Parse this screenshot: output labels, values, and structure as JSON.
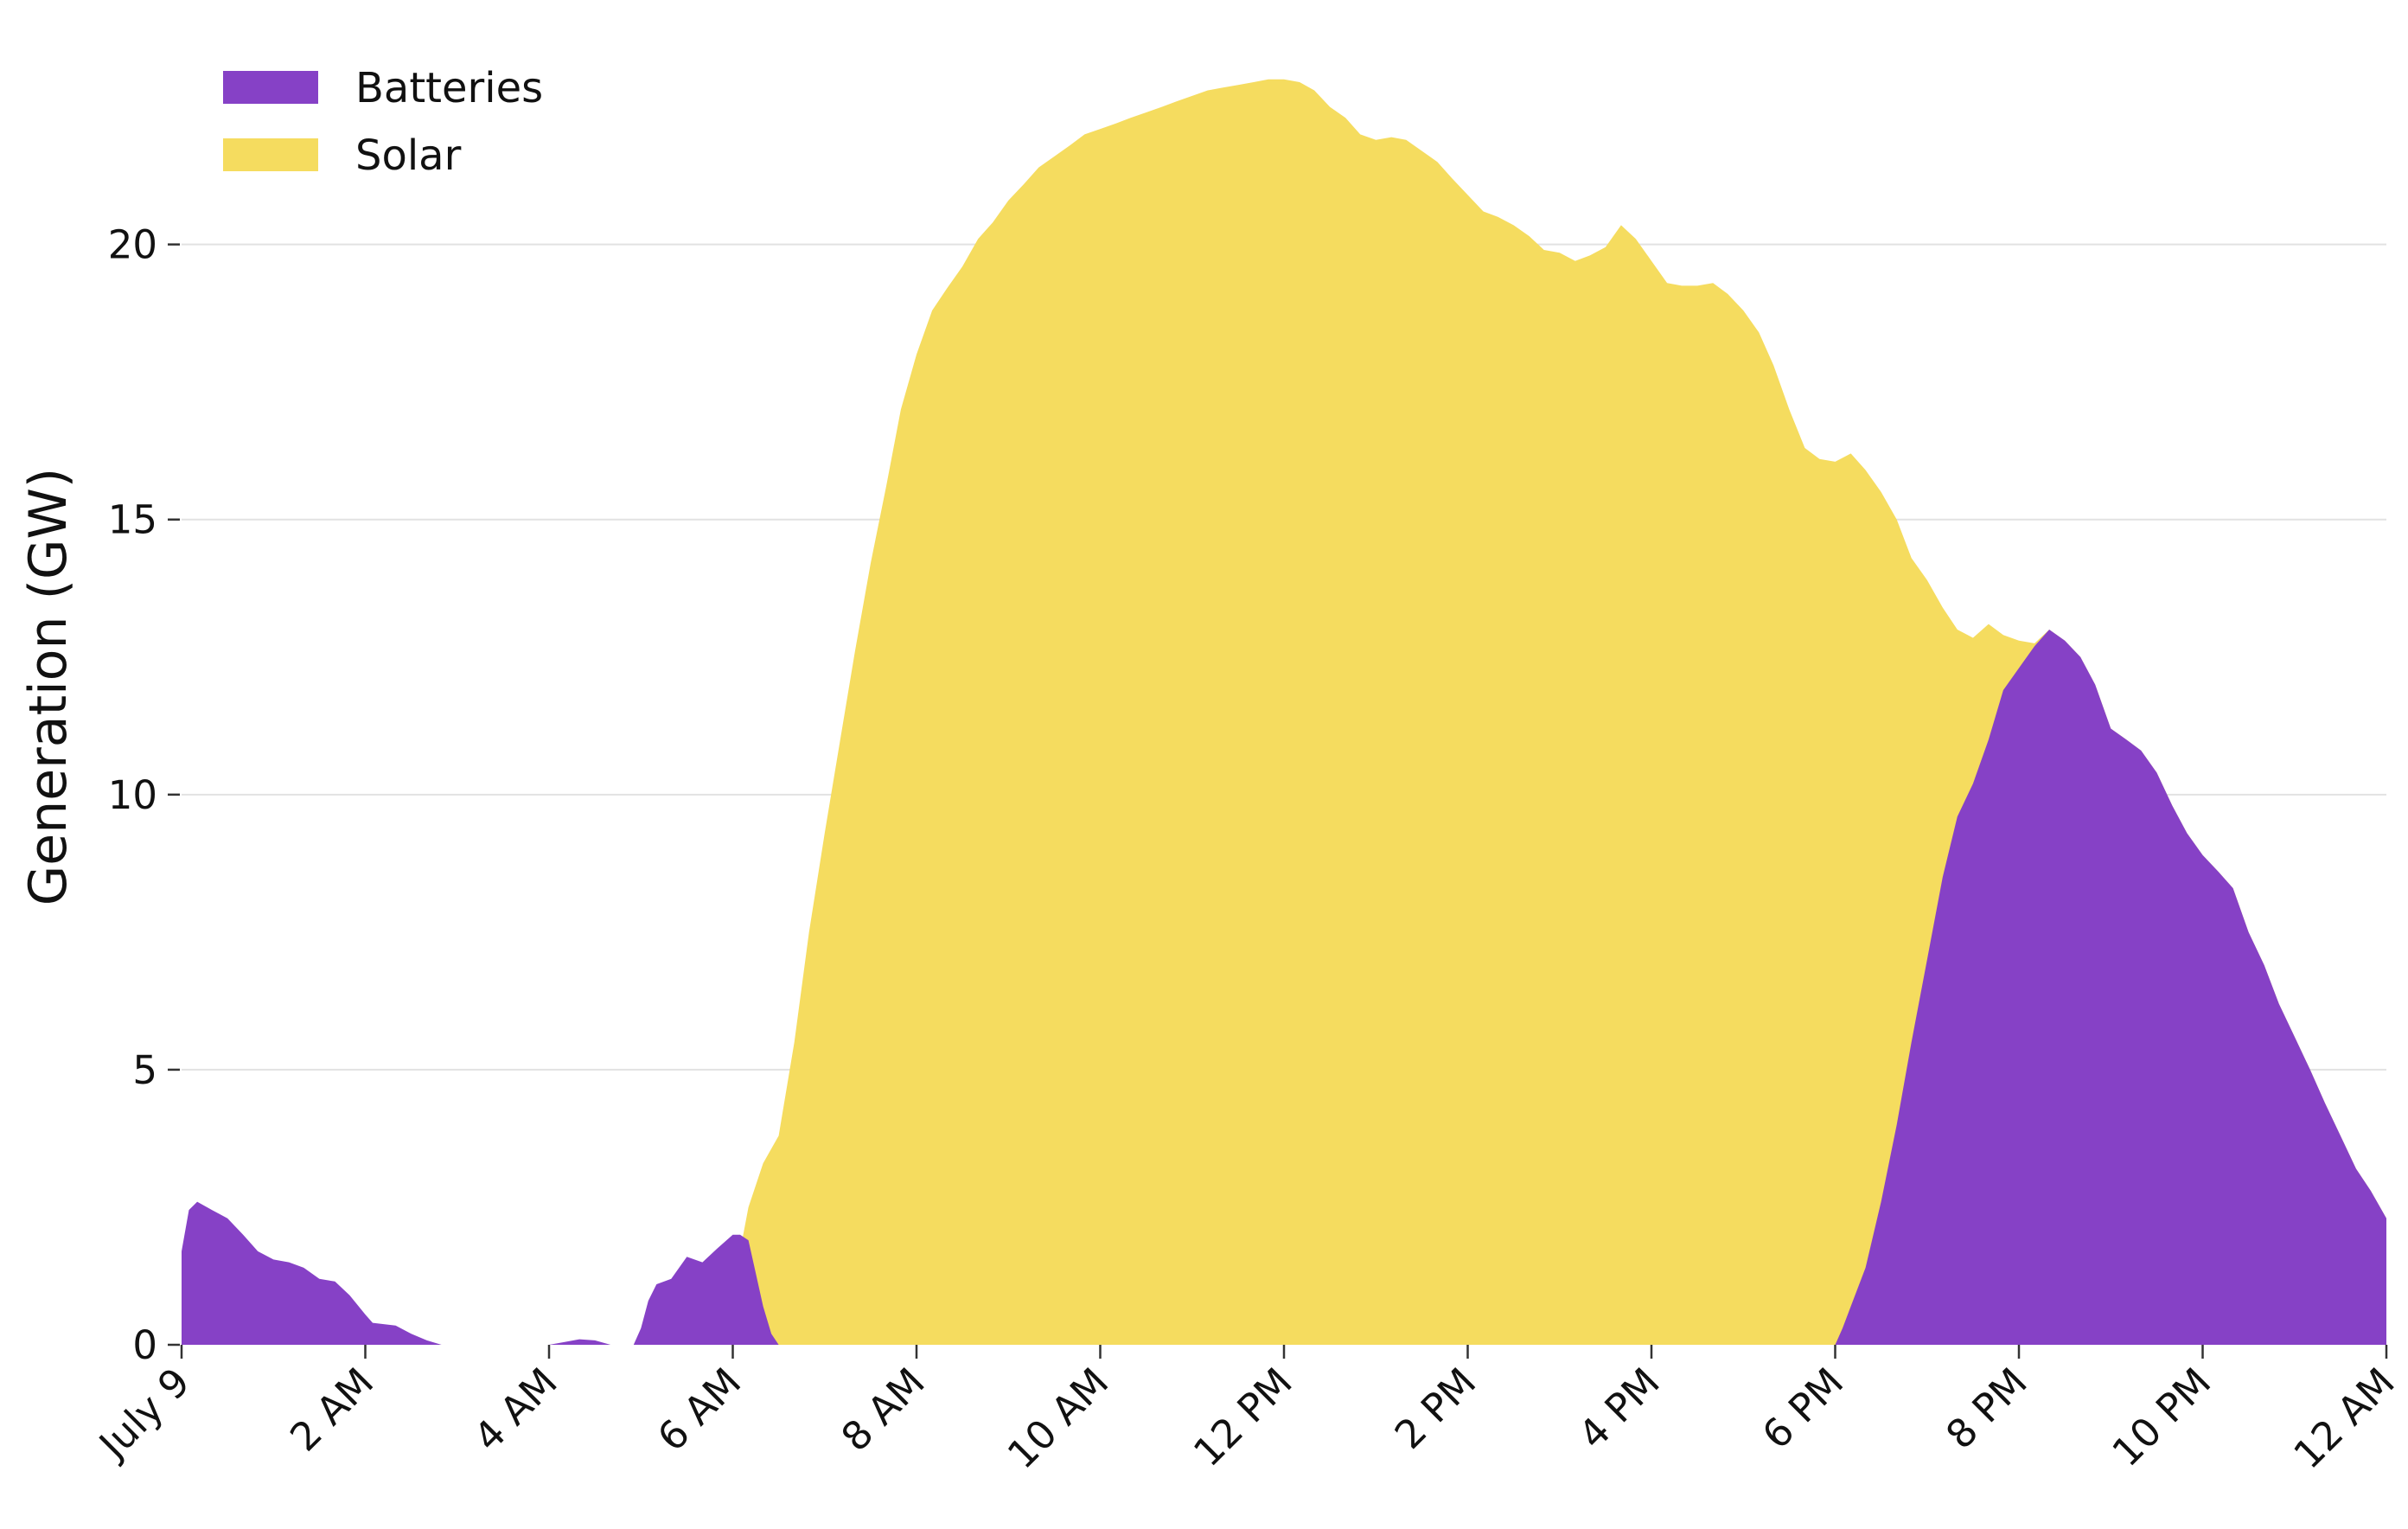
{
  "chart_data": {
    "type": "area",
    "stacked": true,
    "title": "",
    "xlabel": "",
    "ylabel": "Generation (GW)",
    "ylim": [
      0,
      23.5
    ],
    "xlim": [
      0,
      24
    ],
    "grid": "horizontal",
    "legend_position": "top-left",
    "y_ticks": [
      {
        "value": 0,
        "label": "0"
      },
      {
        "value": 5,
        "label": "5"
      },
      {
        "value": 10,
        "label": "10"
      },
      {
        "value": 15,
        "label": "15"
      },
      {
        "value": 20,
        "label": "20"
      }
    ],
    "x_ticks": [
      {
        "value": 0,
        "label": "July 9"
      },
      {
        "value": 2,
        "label": "2 AM"
      },
      {
        "value": 4,
        "label": "4 AM"
      },
      {
        "value": 6,
        "label": "6 AM"
      },
      {
        "value": 8,
        "label": "8 AM"
      },
      {
        "value": 10,
        "label": "10 AM"
      },
      {
        "value": 12,
        "label": "12 PM"
      },
      {
        "value": 14,
        "label": "2 PM"
      },
      {
        "value": 16,
        "label": "4 PM"
      },
      {
        "value": 18,
        "label": "6 PM"
      },
      {
        "value": 20,
        "label": "8 PM"
      },
      {
        "value": 22,
        "label": "10 PM"
      },
      {
        "value": 24,
        "label": "12 AM"
      }
    ],
    "series": [
      {
        "name": "Batteries",
        "color": "#8641c6",
        "points": [
          [
            0,
            1.7
          ],
          [
            0.08,
            2.45
          ],
          [
            0.17,
            2.6
          ],
          [
            0.33,
            2.45
          ],
          [
            0.5,
            2.3
          ],
          [
            0.67,
            2.0
          ],
          [
            0.83,
            1.7
          ],
          [
            1.0,
            1.55
          ],
          [
            1.17,
            1.5
          ],
          [
            1.33,
            1.4
          ],
          [
            1.5,
            1.2
          ],
          [
            1.67,
            1.15
          ],
          [
            1.83,
            0.9
          ],
          [
            2.0,
            0.55
          ],
          [
            2.08,
            0.4
          ],
          [
            2.33,
            0.35
          ],
          [
            2.5,
            0.2
          ],
          [
            2.67,
            0.08
          ],
          [
            2.83,
            0.0
          ],
          [
            4.0,
            0.0
          ],
          [
            4.17,
            0.05
          ],
          [
            4.33,
            0.1
          ],
          [
            4.5,
            0.08
          ],
          [
            4.67,
            0.0
          ],
          [
            4.92,
            0.0
          ],
          [
            5.0,
            0.3
          ],
          [
            5.08,
            0.8
          ],
          [
            5.17,
            1.1
          ],
          [
            5.33,
            1.2
          ],
          [
            5.5,
            1.6
          ],
          [
            5.67,
            1.5
          ],
          [
            5.83,
            1.75
          ],
          [
            6.0,
            2.0
          ],
          [
            6.08,
            2.0
          ],
          [
            6.17,
            1.9
          ],
          [
            6.25,
            1.3
          ],
          [
            6.33,
            0.7
          ],
          [
            6.42,
            0.2
          ],
          [
            6.5,
            0.0
          ],
          [
            18.0,
            0.0
          ],
          [
            18.08,
            0.3
          ],
          [
            18.17,
            0.7
          ],
          [
            18.33,
            1.4
          ],
          [
            18.5,
            2.6
          ],
          [
            18.67,
            4.0
          ],
          [
            18.83,
            5.5
          ],
          [
            19.0,
            7.0
          ],
          [
            19.17,
            8.5
          ],
          [
            19.33,
            9.6
          ],
          [
            19.5,
            10.2
          ],
          [
            19.67,
            11.0
          ],
          [
            19.83,
            11.9
          ],
          [
            20.0,
            12.3
          ],
          [
            20.17,
            12.7
          ],
          [
            20.33,
            13.0
          ],
          [
            20.5,
            12.8
          ],
          [
            20.67,
            12.5
          ],
          [
            20.83,
            12.0
          ],
          [
            21.0,
            11.2
          ],
          [
            21.17,
            11.0
          ],
          [
            21.33,
            10.8
          ],
          [
            21.5,
            10.4
          ],
          [
            21.67,
            9.8
          ],
          [
            21.83,
            9.3
          ],
          [
            22.0,
            8.9
          ],
          [
            22.17,
            8.6
          ],
          [
            22.33,
            8.3
          ],
          [
            22.5,
            7.5
          ],
          [
            22.67,
            6.9
          ],
          [
            22.83,
            6.2
          ],
          [
            23.0,
            5.6
          ],
          [
            23.17,
            5.0
          ],
          [
            23.33,
            4.4
          ],
          [
            23.5,
            3.8
          ],
          [
            23.67,
            3.2
          ],
          [
            23.83,
            2.8
          ],
          [
            24.0,
            2.3
          ]
        ]
      },
      {
        "name": "Solar",
        "color": "#f5dc5f",
        "points": [
          [
            0,
            0.0
          ],
          [
            5.75,
            0.0
          ],
          [
            5.83,
            0.2
          ],
          [
            5.92,
            0.6
          ],
          [
            6.0,
            1.0
          ],
          [
            6.17,
            2.5
          ],
          [
            6.33,
            3.3
          ],
          [
            6.5,
            3.8
          ],
          [
            6.67,
            5.5
          ],
          [
            6.83,
            7.5
          ],
          [
            7.0,
            9.3
          ],
          [
            7.17,
            11.0
          ],
          [
            7.33,
            12.6
          ],
          [
            7.5,
            14.2
          ],
          [
            7.67,
            15.6
          ],
          [
            7.83,
            17.0
          ],
          [
            8.0,
            18.0
          ],
          [
            8.17,
            18.8
          ],
          [
            8.33,
            19.2
          ],
          [
            8.5,
            19.6
          ],
          [
            8.67,
            20.1
          ],
          [
            8.83,
            20.4
          ],
          [
            9.0,
            20.8
          ],
          [
            9.17,
            21.1
          ],
          [
            9.33,
            21.4
          ],
          [
            9.5,
            21.6
          ],
          [
            9.67,
            21.8
          ],
          [
            9.83,
            22.0
          ],
          [
            10.0,
            22.1
          ],
          [
            10.17,
            22.2
          ],
          [
            10.33,
            22.3
          ],
          [
            10.5,
            22.4
          ],
          [
            10.67,
            22.5
          ],
          [
            10.83,
            22.6
          ],
          [
            11.0,
            22.7
          ],
          [
            11.17,
            22.8
          ],
          [
            11.33,
            22.85
          ],
          [
            11.5,
            22.9
          ],
          [
            11.67,
            22.95
          ],
          [
            11.83,
            23.0
          ],
          [
            12.0,
            23.0
          ],
          [
            12.17,
            22.95
          ],
          [
            12.33,
            22.8
          ],
          [
            12.5,
            22.5
          ],
          [
            12.67,
            22.3
          ],
          [
            12.83,
            22.0
          ],
          [
            13.0,
            21.9
          ],
          [
            13.17,
            21.95
          ],
          [
            13.33,
            21.9
          ],
          [
            13.5,
            21.7
          ],
          [
            13.67,
            21.5
          ],
          [
            13.83,
            21.2
          ],
          [
            14.0,
            20.9
          ],
          [
            14.17,
            20.6
          ],
          [
            14.33,
            20.5
          ],
          [
            14.5,
            20.35
          ],
          [
            14.67,
            20.15
          ],
          [
            14.83,
            19.9
          ],
          [
            15.0,
            19.85
          ],
          [
            15.17,
            19.7
          ],
          [
            15.33,
            19.8
          ],
          [
            15.5,
            19.95
          ],
          [
            15.67,
            20.35
          ],
          [
            15.83,
            20.1
          ],
          [
            16.0,
            19.7
          ],
          [
            16.17,
            19.3
          ],
          [
            16.33,
            19.25
          ],
          [
            16.5,
            19.25
          ],
          [
            16.67,
            19.3
          ],
          [
            16.83,
            19.1
          ],
          [
            17.0,
            18.8
          ],
          [
            17.17,
            18.4
          ],
          [
            17.33,
            17.8
          ],
          [
            17.5,
            17.0
          ],
          [
            17.67,
            16.3
          ],
          [
            17.83,
            16.1
          ],
          [
            18.0,
            16.05
          ],
          [
            18.17,
            16.2
          ],
          [
            18.33,
            15.9
          ],
          [
            18.5,
            15.5
          ],
          [
            18.67,
            15.0
          ],
          [
            18.83,
            14.3
          ],
          [
            19.0,
            13.9
          ],
          [
            19.17,
            13.4
          ],
          [
            19.33,
            13.0
          ],
          [
            19.5,
            12.85
          ],
          [
            19.67,
            13.1
          ],
          [
            19.83,
            12.9
          ],
          [
            20.0,
            12.8
          ],
          [
            20.17,
            12.75
          ],
          [
            20.33,
            13.0
          ],
          [
            20.5,
            12.8
          ],
          [
            20.67,
            12.5
          ],
          [
            20.83,
            12.0
          ],
          [
            21.0,
            11.2
          ],
          [
            21.17,
            11.0
          ],
          [
            21.33,
            10.8
          ],
          [
            21.5,
            10.4
          ],
          [
            21.67,
            9.8
          ],
          [
            21.83,
            9.3
          ],
          [
            22.0,
            8.9
          ],
          [
            22.17,
            8.6
          ],
          [
            22.33,
            8.3
          ],
          [
            22.5,
            7.5
          ],
          [
            22.67,
            6.9
          ],
          [
            22.83,
            6.2
          ],
          [
            23.0,
            5.6
          ],
          [
            23.17,
            5.0
          ],
          [
            23.33,
            4.4
          ],
          [
            23.5,
            3.8
          ],
          [
            23.67,
            3.2
          ],
          [
            23.83,
            2.8
          ],
          [
            24.0,
            2.3
          ]
        ]
      }
    ]
  }
}
